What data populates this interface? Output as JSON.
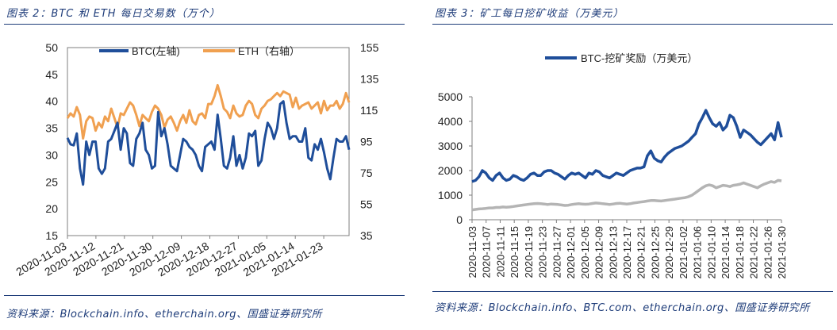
{
  "left": {
    "caption": "图表 2：BTC 和 ETH 每日交易数（万个）",
    "source": "资料来源：Blockchain.info、etherchain.org、国盛证券研究所"
  },
  "right": {
    "caption": "图表 3：矿工每日挖矿收益（万美元）",
    "source": "资料来源：Blockchain.info、BTC.com、etherchain.org、国盛证券研究所"
  },
  "colors": {
    "btc": "#1f4e9a",
    "eth": "#f0a050",
    "gray": "#b4b4b4",
    "caption": "#1f3d7a"
  },
  "chart_data": [
    {
      "type": "line",
      "x_ticks": [
        "2020-11-03",
        "2020-11-12",
        "2020-11-21",
        "2020-11-30",
        "2020-12-09",
        "2020-12-18",
        "2020-12-27",
        "2021-01-05",
        "2021-01-14",
        "2021-01-23"
      ],
      "x_start": "2020-11-03",
      "x_end": "2021-01-31",
      "ylim_left": [
        15,
        50
      ],
      "yticks_left": [
        15,
        20,
        25,
        30,
        35,
        40,
        45,
        50
      ],
      "ylim_right": [
        35,
        155
      ],
      "yticks_right": [
        35,
        55,
        75,
        95,
        115,
        135,
        155
      ],
      "legend_position": "top",
      "series": [
        {
          "name": "BTC(左轴)",
          "axis": "left",
          "values": [
            33.2,
            32,
            31.8,
            34,
            27.5,
            24.5,
            32.5,
            30,
            32.5,
            32.5,
            27.5,
            26.5,
            27.5,
            32.5,
            33,
            34.5,
            36,
            31,
            35,
            34,
            28.5,
            28,
            33,
            34,
            36,
            31,
            30,
            27.5,
            28,
            38,
            33.5,
            35,
            32,
            28,
            27.5,
            27,
            30,
            33,
            32.5,
            31.5,
            31,
            30,
            28,
            27,
            31.5,
            32,
            32.5,
            31,
            37.5,
            33,
            28,
            27.5,
            29.5,
            33.5,
            28,
            30,
            27.5,
            29.5,
            34,
            33.5,
            34.5,
            28,
            29,
            33,
            36,
            35,
            33,
            35,
            39.5,
            40,
            36,
            33,
            33.5,
            33.5,
            32.5,
            32.5,
            35,
            29.5,
            29,
            32,
            31,
            33,
            30.5,
            27.5,
            25.5,
            29.5,
            33,
            32.5,
            32.5,
            33.5,
            31
          ]
        },
        {
          "name": "ETH（右轴）",
          "axis": "right",
          "values": [
            110,
            113,
            111,
            117,
            112,
            97,
            108,
            111,
            110,
            102,
            107,
            104,
            111,
            108,
            116,
            110,
            104,
            113,
            112,
            116,
            120,
            118,
            112,
            105,
            112,
            110,
            108,
            114,
            118,
            116,
            112,
            104,
            109,
            111,
            107,
            102,
            108,
            112,
            107,
            115,
            108,
            106,
            112,
            113,
            110,
            119,
            119,
            124,
            131,
            124,
            116,
            114,
            110,
            118,
            113,
            111,
            112,
            118,
            121,
            119,
            112,
            110,
            116,
            118,
            121,
            122,
            124,
            126,
            124,
            127,
            126,
            125,
            117,
            123,
            116,
            118,
            119,
            120,
            116,
            118,
            120,
            113,
            121,
            115,
            118,
            118,
            121,
            116,
            119,
            126,
            120
          ]
        }
      ]
    },
    {
      "type": "line",
      "x_ticks": [
        "2020-11-03",
        "2020-11-07",
        "2020-11-11",
        "2020-11-15",
        "2020-11-19",
        "2020-11-23",
        "2020-11-27",
        "2020-12-01",
        "2020-12-05",
        "2020-12-09",
        "2020-12-13",
        "2020-12-17",
        "2020-12-21",
        "2020-12-25",
        "2020-12-29",
        "2021-01-02",
        "2021-01-06",
        "2021-01-10",
        "2021-01-14",
        "2021-01-18",
        "2021-01-22",
        "2021-01-26",
        "2021-01-30"
      ],
      "x_start": "2020-11-03",
      "x_end": "2021-01-30",
      "ylim": [
        0,
        5000
      ],
      "yticks": [
        0,
        1000,
        2000,
        3000,
        4000,
        5000
      ],
      "legend_position": "top",
      "series": [
        {
          "name": "BTC-挖矿奖励（万美元）",
          "values": [
            1550,
            1600,
            1750,
            2000,
            1900,
            1700,
            1600,
            1800,
            1900,
            1700,
            1600,
            1650,
            1800,
            1750,
            1650,
            1600,
            1700,
            1850,
            1900,
            1800,
            1800,
            1950,
            2000,
            2000,
            1900,
            1850,
            1750,
            1650,
            1800,
            1900,
            1850,
            1900,
            1800,
            1700,
            1900,
            1850,
            2000,
            1950,
            1800,
            1750,
            1700,
            1800,
            1900,
            1850,
            1800,
            1900,
            2000,
            2050,
            2100,
            2100,
            2150,
            2600,
            2800,
            2500,
            2400,
            2350,
            2550,
            2700,
            2800,
            2900,
            2950,
            3000,
            3100,
            3200,
            3350,
            3500,
            3900,
            4150,
            4450,
            4150,
            3900,
            3800,
            3950,
            3650,
            3800,
            4250,
            4150,
            3800,
            3350,
            3650,
            3550,
            3450,
            3300,
            3150,
            3050,
            3200,
            3350,
            3500,
            3250,
            3950,
            3350
          ]
        },
        {
          "values": [
            400,
            420,
            440,
            450,
            460,
            480,
            480,
            500,
            500,
            520,
            510,
            520,
            540,
            560,
            580,
            600,
            620,
            640,
            650,
            660,
            650,
            640,
            620,
            640,
            630,
            620,
            600,
            580,
            590,
            620,
            640,
            650,
            640,
            630,
            640,
            660,
            680,
            670,
            650,
            640,
            620,
            640,
            660,
            670,
            650,
            640,
            650,
            680,
            700,
            720,
            740,
            760,
            780,
            780,
            770,
            760,
            780,
            800,
            820,
            840,
            860,
            880,
            900,
            940,
            1000,
            1100,
            1200,
            1300,
            1380,
            1420,
            1380,
            1300,
            1350,
            1400,
            1380,
            1350,
            1400,
            1420,
            1450,
            1500,
            1450,
            1400,
            1350,
            1300,
            1380,
            1450,
            1500,
            1550,
            1520,
            1600,
            1580
          ]
        }
      ]
    }
  ]
}
